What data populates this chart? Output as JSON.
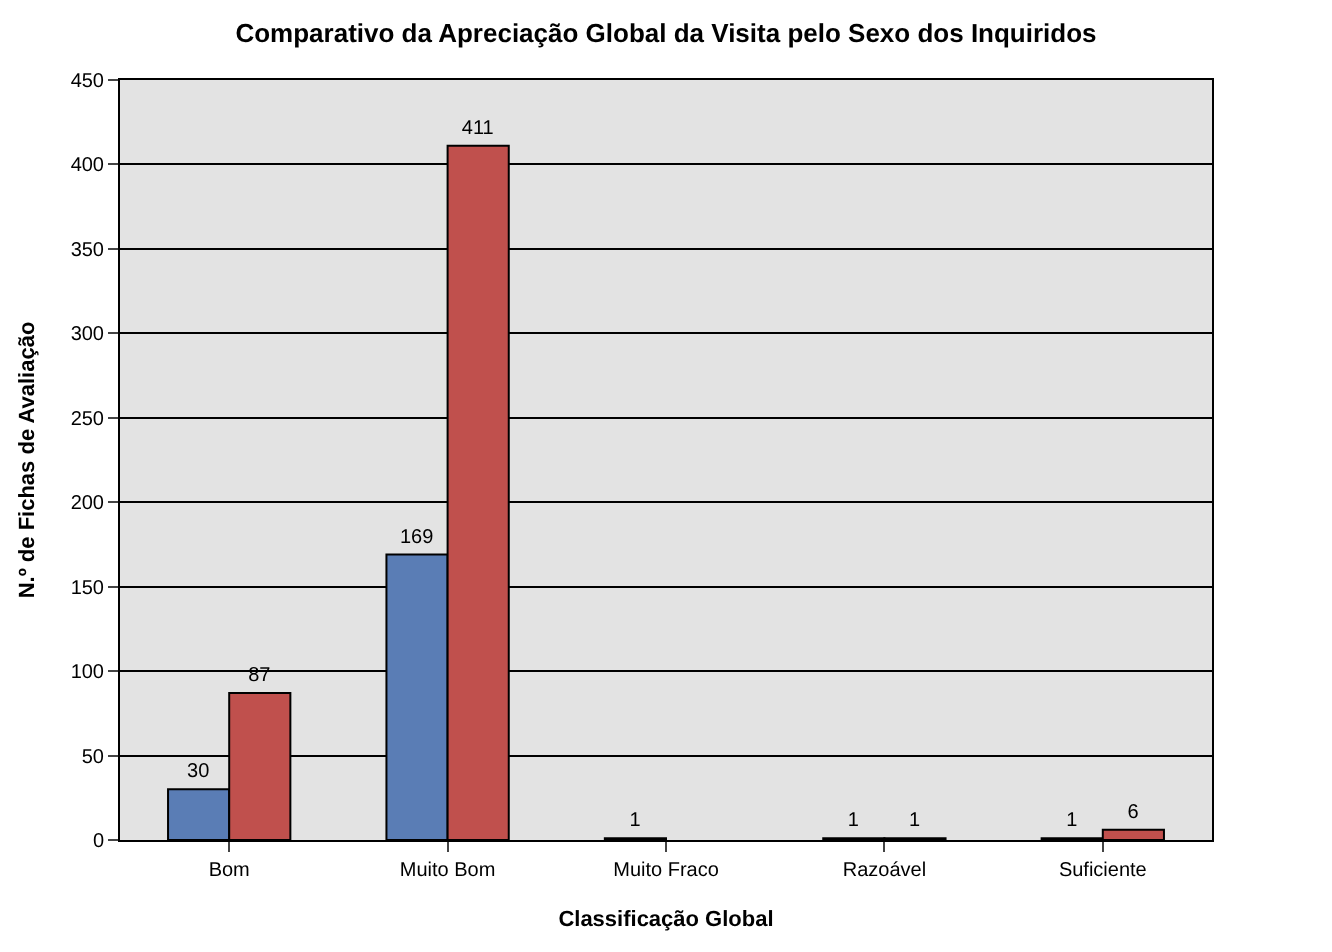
{
  "chart_data": {
    "type": "bar",
    "title": "Comparativo da Apreciação Global da Visita pelo Sexo dos Inquiridos",
    "xlabel": "Classificação Global",
    "ylabel": "N.º de Fichas de Avaliação",
    "categories": [
      "Bom",
      "Muito Bom",
      "Muito Fraco",
      "Razoável",
      "Suficiente"
    ],
    "series": [
      {
        "color": "#5a7db5",
        "values": [
          30,
          169,
          1,
          1,
          1
        ]
      },
      {
        "color": "#c0504d",
        "values": [
          87,
          411,
          null,
          1,
          6
        ]
      }
    ],
    "ylim": [
      0,
      450
    ],
    "yticks": [
      0,
      50,
      100,
      150,
      200,
      250,
      300,
      350,
      400,
      450
    ],
    "grid": "y",
    "data_labels": true
  }
}
